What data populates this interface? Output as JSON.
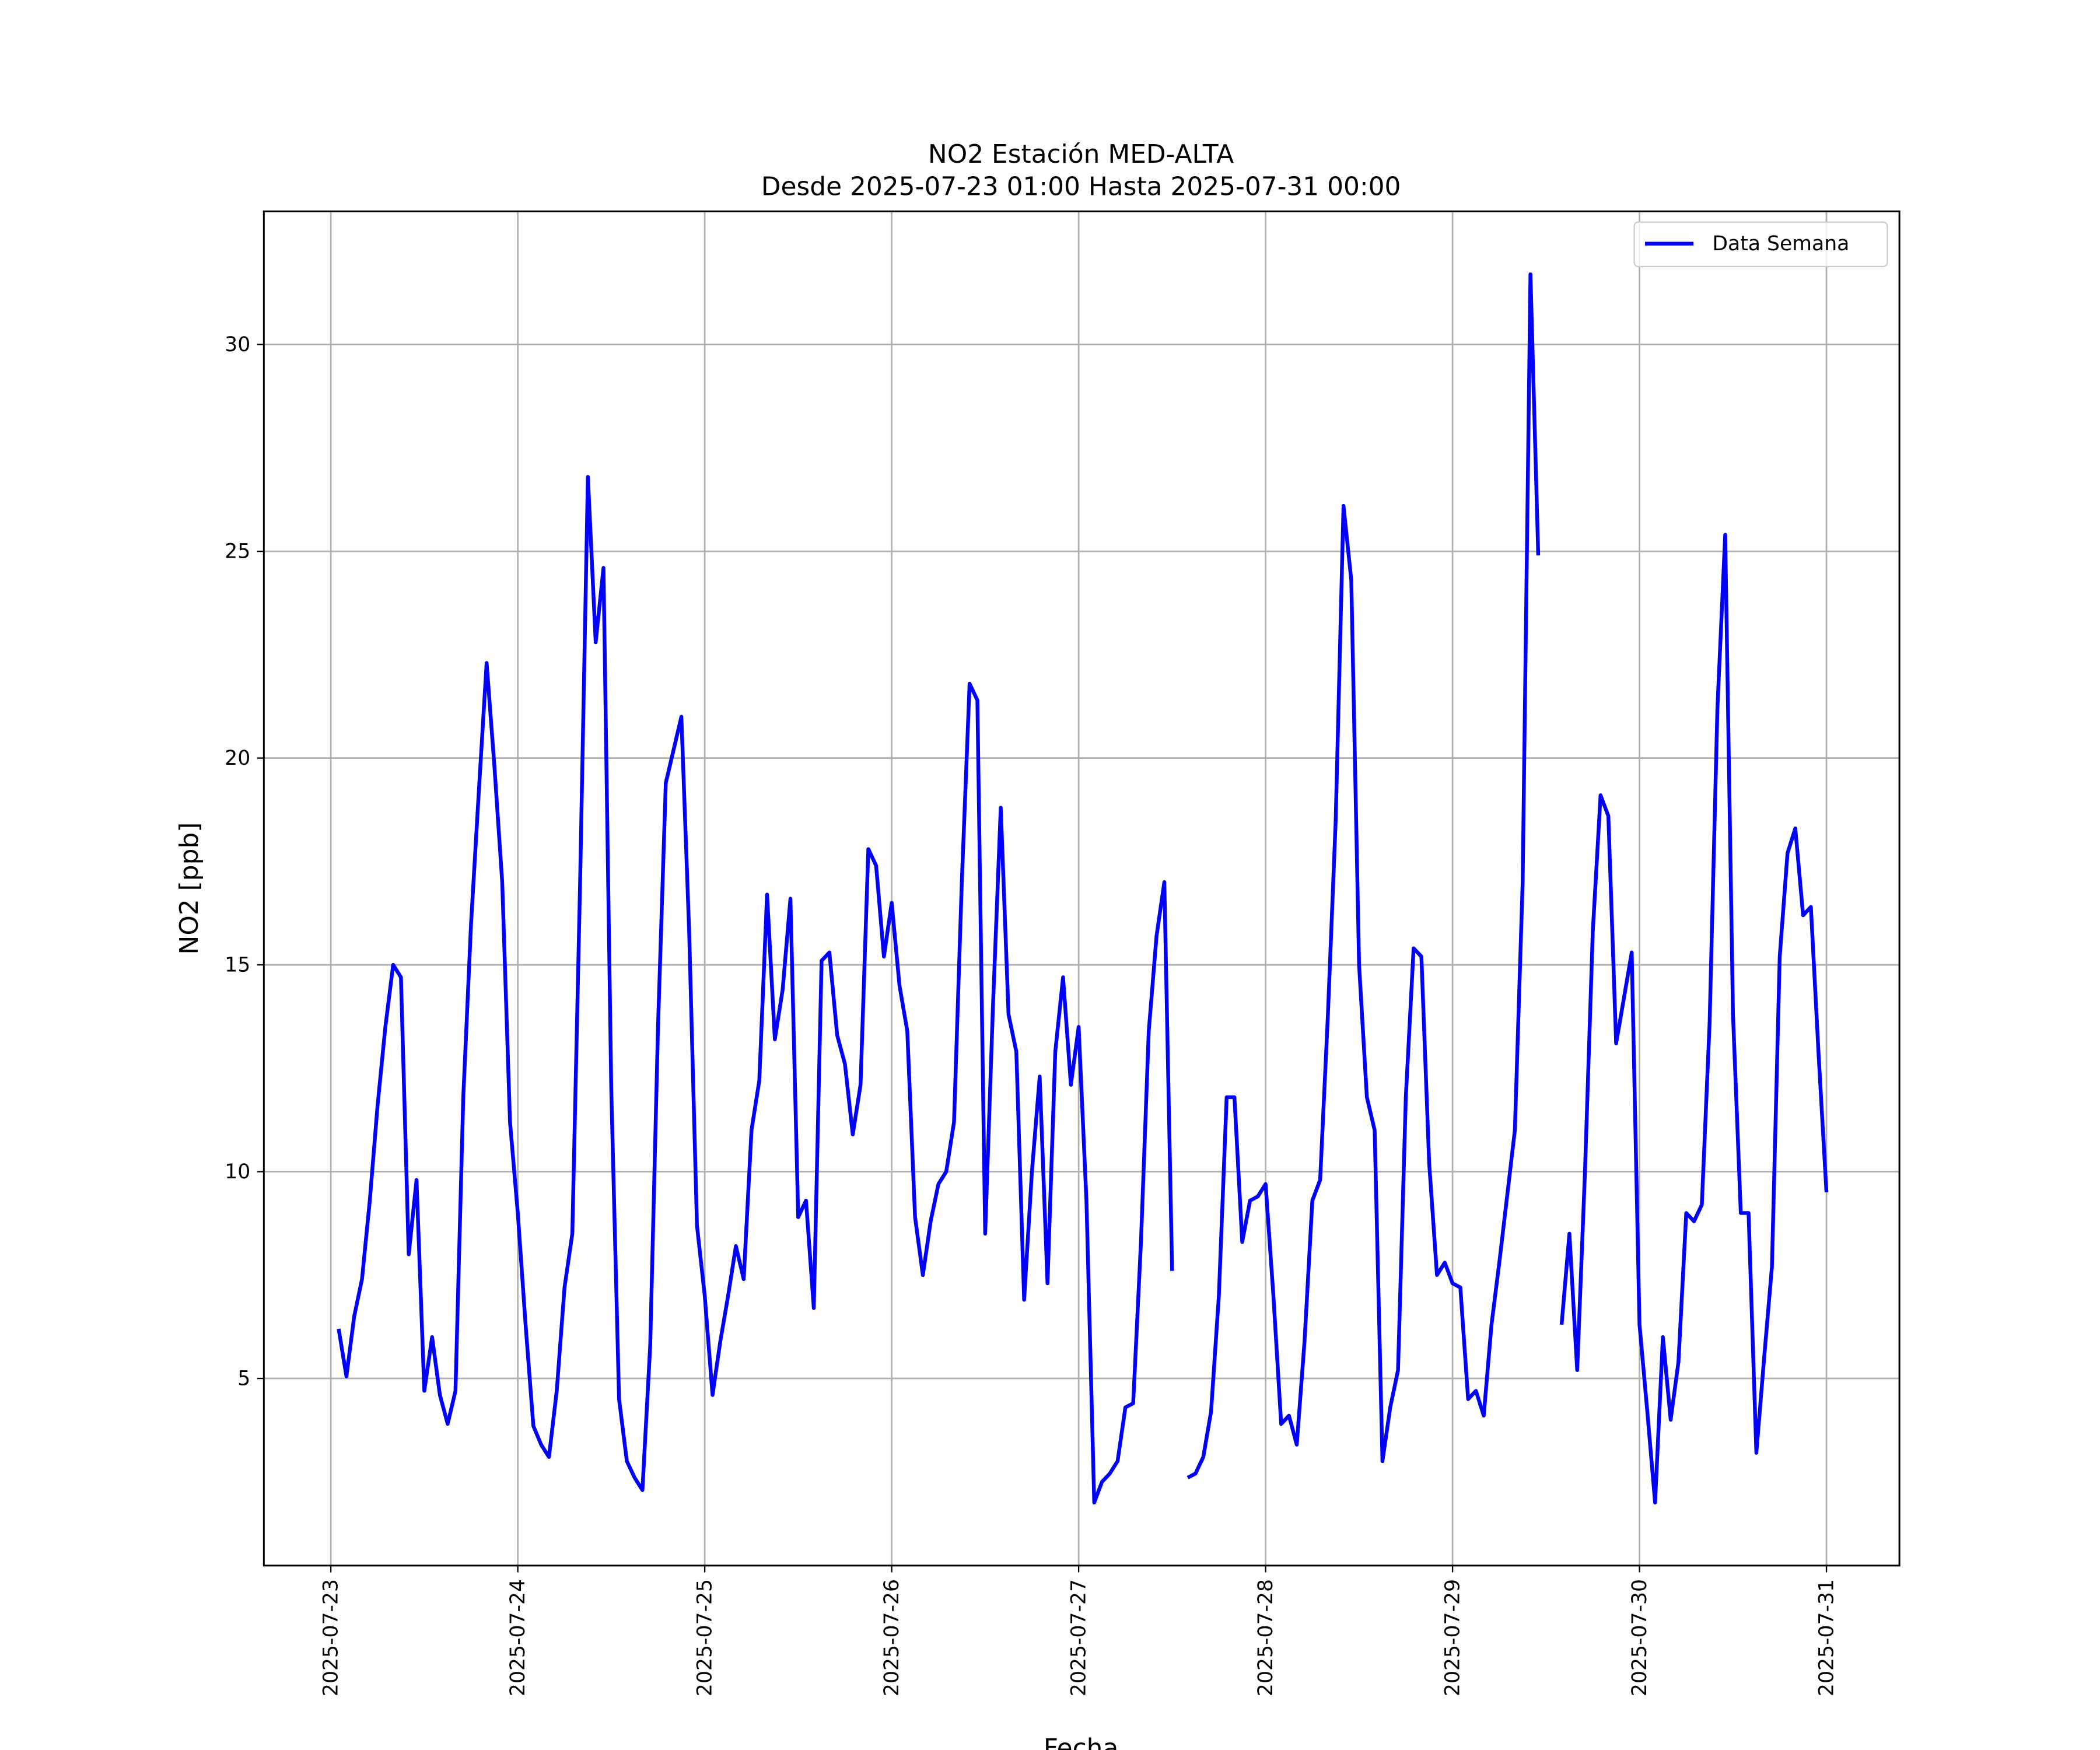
{
  "chart_data": {
    "type": "line",
    "title": "NO2 Estación MED-ALTA",
    "subtitle": "Desde 2025-07-23 01:00 Hasta 2025-07-31 00:00",
    "xlabel": "Fecha",
    "ylabel": "NO2 [ppb]",
    "legend": "upper right",
    "grid": true,
    "xlim": [
      "2025-07-22 15:24",
      "2025-07-31 09:22"
    ],
    "xticks": [
      "2025-07-23",
      "2025-07-24",
      "2025-07-25",
      "2025-07-26",
      "2025-07-27",
      "2025-07-28",
      "2025-07-29",
      "2025-07-30",
      "2025-07-31"
    ],
    "ylim": [
      0.475,
      33.22
    ],
    "yticks": [
      5,
      10,
      15,
      20,
      25,
      30
    ],
    "x": [
      "2025-07-23 01:00",
      "2025-07-23 02:00",
      "2025-07-23 03:00",
      "2025-07-23 04:00",
      "2025-07-23 05:00",
      "2025-07-23 06:00",
      "2025-07-23 07:00",
      "2025-07-23 08:00",
      "2025-07-23 09:00",
      "2025-07-23 10:00",
      "2025-07-23 11:00",
      "2025-07-23 12:00",
      "2025-07-23 13:00",
      "2025-07-23 14:00",
      "2025-07-23 15:00",
      "2025-07-23 16:00",
      "2025-07-23 17:00",
      "2025-07-23 18:00",
      "2025-07-23 19:00",
      "2025-07-23 20:00",
      "2025-07-23 21:00",
      "2025-07-23 22:00",
      "2025-07-23 23:00",
      "2025-07-24 00:00",
      "2025-07-24 01:00",
      "2025-07-24 02:00",
      "2025-07-24 03:00",
      "2025-07-24 04:00",
      "2025-07-24 05:00",
      "2025-07-24 06:00",
      "2025-07-24 07:00",
      "2025-07-24 08:00",
      "2025-07-24 09:00",
      "2025-07-24 10:00",
      "2025-07-24 11:00",
      "2025-07-24 12:00",
      "2025-07-24 13:00",
      "2025-07-24 14:00",
      "2025-07-24 15:00",
      "2025-07-24 16:00",
      "2025-07-24 17:00",
      "2025-07-24 18:00",
      "2025-07-24 19:00",
      "2025-07-24 20:00",
      "2025-07-24 21:00",
      "2025-07-24 22:00",
      "2025-07-24 23:00",
      "2025-07-25 00:00",
      "2025-07-25 01:00",
      "2025-07-25 02:00",
      "2025-07-25 03:00",
      "2025-07-25 04:00",
      "2025-07-25 05:00",
      "2025-07-25 06:00",
      "2025-07-25 07:00",
      "2025-07-25 08:00",
      "2025-07-25 09:00",
      "2025-07-25 10:00",
      "2025-07-25 11:00",
      "2025-07-25 12:00",
      "2025-07-25 13:00",
      "2025-07-25 14:00",
      "2025-07-25 15:00",
      "2025-07-25 16:00",
      "2025-07-25 17:00",
      "2025-07-25 18:00",
      "2025-07-25 19:00",
      "2025-07-25 20:00",
      "2025-07-25 21:00",
      "2025-07-25 22:00",
      "2025-07-25 23:00",
      "2025-07-26 00:00",
      "2025-07-26 01:00",
      "2025-07-26 02:00",
      "2025-07-26 03:00",
      "2025-07-26 04:00",
      "2025-07-26 05:00",
      "2025-07-26 06:00",
      "2025-07-26 07:00",
      "2025-07-26 08:00",
      "2025-07-26 09:00",
      "2025-07-26 10:00",
      "2025-07-26 11:00",
      "2025-07-26 12:00",
      "2025-07-26 13:00",
      "2025-07-26 14:00",
      "2025-07-26 15:00",
      "2025-07-26 16:00",
      "2025-07-26 17:00",
      "2025-07-26 18:00",
      "2025-07-26 19:00",
      "2025-07-26 20:00",
      "2025-07-26 21:00",
      "2025-07-26 22:00",
      "2025-07-26 23:00",
      "2025-07-27 00:00",
      "2025-07-27 01:00",
      "2025-07-27 02:00",
      "2025-07-27 03:00",
      "2025-07-27 04:00",
      "2025-07-27 05:00",
      "2025-07-27 06:00",
      "2025-07-27 07:00",
      "2025-07-27 08:00",
      "2025-07-27 09:00",
      "2025-07-27 10:00",
      "2025-07-27 11:00",
      "2025-07-27 12:00",
      "2025-07-27 13:00",
      "2025-07-27 14:00",
      "2025-07-27 15:00",
      "2025-07-27 16:00",
      "2025-07-27 17:00",
      "2025-07-27 18:00",
      "2025-07-27 19:00",
      "2025-07-27 20:00",
      "2025-07-27 21:00",
      "2025-07-27 22:00",
      "2025-07-27 23:00",
      "2025-07-28 00:00",
      "2025-07-28 01:00",
      "2025-07-28 02:00",
      "2025-07-28 03:00",
      "2025-07-28 04:00",
      "2025-07-28 05:00",
      "2025-07-28 06:00",
      "2025-07-28 07:00",
      "2025-07-28 08:00",
      "2025-07-28 09:00",
      "2025-07-28 10:00",
      "2025-07-28 11:00",
      "2025-07-28 12:00",
      "2025-07-28 13:00",
      "2025-07-28 14:00",
      "2025-07-28 15:00",
      "2025-07-28 16:00",
      "2025-07-28 17:00",
      "2025-07-28 18:00",
      "2025-07-28 19:00",
      "2025-07-28 20:00",
      "2025-07-28 21:00",
      "2025-07-28 22:00",
      "2025-07-28 23:00",
      "2025-07-29 00:00",
      "2025-07-29 01:00",
      "2025-07-29 02:00",
      "2025-07-29 03:00",
      "2025-07-29 04:00",
      "2025-07-29 05:00",
      "2025-07-29 06:00",
      "2025-07-29 07:00",
      "2025-07-29 08:00",
      "2025-07-29 09:00",
      "2025-07-29 10:00",
      "2025-07-29 11:00",
      "2025-07-29 12:00",
      "2025-07-29 13:00",
      "2025-07-29 14:00",
      "2025-07-29 15:00",
      "2025-07-29 16:00",
      "2025-07-29 17:00",
      "2025-07-29 18:00",
      "2025-07-29 19:00",
      "2025-07-29 20:00",
      "2025-07-29 21:00",
      "2025-07-29 22:00",
      "2025-07-29 23:00",
      "2025-07-30 00:00",
      "2025-07-30 01:00",
      "2025-07-30 02:00",
      "2025-07-30 03:00",
      "2025-07-30 04:00",
      "2025-07-30 05:00",
      "2025-07-30 06:00",
      "2025-07-30 07:00",
      "2025-07-30 08:00",
      "2025-07-30 09:00",
      "2025-07-30 10:00",
      "2025-07-30 11:00",
      "2025-07-30 12:00",
      "2025-07-30 13:00",
      "2025-07-30 14:00",
      "2025-07-30 15:00",
      "2025-07-30 16:00",
      "2025-07-30 17:00",
      "2025-07-30 18:00",
      "2025-07-30 19:00",
      "2025-07-30 20:00",
      "2025-07-30 21:00",
      "2025-07-30 22:00",
      "2025-07-30 23:00",
      "2025-07-31 00:00"
    ],
    "series": [
      {
        "name": "Data Semana",
        "color": "#0000ff",
        "values": [
          6.2,
          5.05,
          6.5,
          7.4,
          9.3,
          11.6,
          13.5,
          15.0,
          14.7,
          8.0,
          9.8,
          4.7,
          6.0,
          4.6,
          3.9,
          4.7,
          11.8,
          16.0,
          19.2,
          22.3,
          19.8,
          17.0,
          11.2,
          9.0,
          6.3,
          3.85,
          3.4,
          3.1,
          4.7,
          7.2,
          8.5,
          17.0,
          26.8,
          22.8,
          24.6,
          12.0,
          4.5,
          3.0,
          2.6,
          2.3,
          5.8,
          13.5,
          19.4,
          20.2,
          21.0,
          15.8,
          8.7,
          7.0,
          4.6,
          5.9,
          7.0,
          8.2,
          7.4,
          11.0,
          12.2,
          16.7,
          13.2,
          14.4,
          16.6,
          8.9,
          9.3,
          6.7,
          15.1,
          15.3,
          13.3,
          12.6,
          10.9,
          12.1,
          17.8,
          17.4,
          15.2,
          16.5,
          14.5,
          13.4,
          8.9,
          7.5,
          8.8,
          9.7,
          10.0,
          11.2,
          17.0,
          21.8,
          21.4,
          8.5,
          14.0,
          18.8,
          13.8,
          12.9,
          6.9,
          10.0,
          12.3,
          7.3,
          12.9,
          14.7,
          12.1,
          13.5,
          9.3,
          2.0,
          2.5,
          2.7,
          3.0,
          4.3,
          4.4,
          8.3,
          13.4,
          15.7,
          17.0,
          7.6,
          null,
          2.6,
          2.7,
          3.1,
          4.2,
          7.0,
          11.8,
          11.8,
          8.3,
          9.3,
          9.4,
          9.7,
          7.0,
          3.9,
          4.1,
          3.4,
          5.9,
          9.3,
          9.8,
          13.8,
          18.5,
          26.1,
          24.3,
          15.0,
          11.8,
          11.0,
          3.0,
          4.3,
          5.2,
          11.8,
          15.4,
          15.2,
          10.2,
          7.5,
          7.8,
          7.3,
          7.2,
          4.5,
          4.7,
          4.1,
          6.3,
          7.8,
          9.4,
          11.0,
          17.0,
          31.7,
          24.9,
          null,
          null,
          6.3,
          8.5,
          5.2,
          10.0,
          15.8,
          19.1,
          18.6,
          13.1,
          14.2,
          15.3,
          6.3,
          4.2,
          2.0,
          6.0,
          4.0,
          5.4,
          9.0,
          8.8,
          9.2,
          13.6,
          21.2,
          25.4,
          13.8,
          9.0,
          9.0,
          3.2,
          5.5,
          7.7,
          15.2,
          17.7,
          18.3,
          16.2,
          16.4,
          12.8,
          9.5
        ]
      }
    ]
  }
}
